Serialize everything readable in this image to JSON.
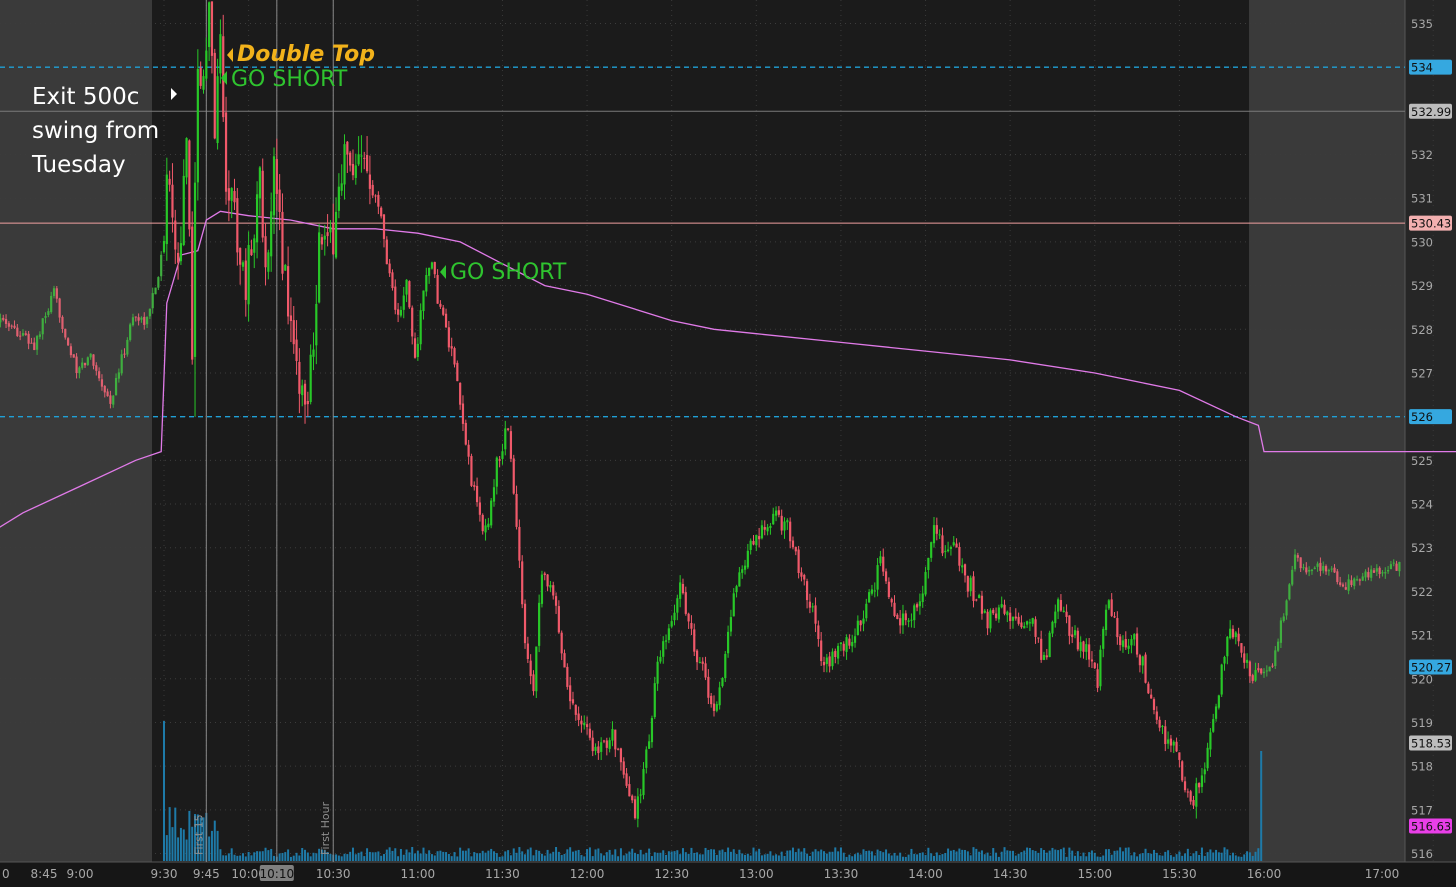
{
  "chart_data": {
    "type": "candlestick",
    "ylim": [
      515.7,
      535.5
    ],
    "y_ticks": [
      "535",
      "534",
      "532.99",
      "532",
      "531",
      "530.43",
      "530",
      "529",
      "528",
      "527",
      "526",
      "525",
      "524",
      "523",
      "522",
      "521",
      "520.27",
      "520",
      "519",
      "518.53",
      "518",
      "517",
      "516.63",
      "516"
    ],
    "x_ticks": [
      "0",
      "8:45",
      "9:00",
      "9:30",
      "9:45",
      "10:00",
      "10:10",
      "10:30",
      "11:00",
      "11:30",
      "12:00",
      "12:30",
      "13:00",
      "13:30",
      "14:00",
      "14:30",
      "15:00",
      "15:30",
      "16:00",
      "17:00"
    ],
    "levels": [
      {
        "value": 534,
        "label": "534",
        "style": "dashed",
        "color": "#1fa0d6"
      },
      {
        "value": 526,
        "label": "526",
        "style": "dashed",
        "color": "#1fa0d6"
      },
      {
        "value": 532.99,
        "label": "532.99",
        "style": "solid",
        "color": "#7a7a7a"
      },
      {
        "value": 530.43,
        "label": "530.43",
        "style": "solid",
        "color": "#f0a0a0"
      }
    ],
    "price_badges": [
      {
        "value": 520.27,
        "label": "520.27",
        "color": "#35a8e0"
      },
      {
        "value": 518.53,
        "label": "518.53",
        "color": "#bdbdbd"
      },
      {
        "value": 516.63,
        "label": "516.63",
        "color": "#e93fe8"
      }
    ],
    "vertical_markers": [
      {
        "time": "9:45",
        "label": "First 15"
      },
      {
        "time": "10:30",
        "label": "First Hour"
      }
    ],
    "price_path": [
      [
        "8:25",
        528.6
      ],
      [
        "8:35",
        528.2
      ],
      [
        "8:45",
        527.6
      ],
      [
        "8:52",
        528.8
      ],
      [
        "9:00",
        527.0
      ],
      [
        "9:05",
        527.4
      ],
      [
        "9:12",
        526.3
      ],
      [
        "9:20",
        528.3
      ],
      [
        "9:25",
        528.2
      ],
      [
        "9:30",
        529.6
      ],
      [
        "9:33",
        531.8
      ],
      [
        "9:36",
        529.5
      ],
      [
        "9:39",
        532.0
      ],
      [
        "9:41",
        527.8
      ],
      [
        "9:43",
        534.4
      ],
      [
        "9:45",
        533.4
      ],
      [
        "9:47",
        535.2
      ],
      [
        "9:49",
        532.8
      ],
      [
        "9:51",
        534.5
      ],
      [
        "9:53",
        531.5
      ],
      [
        "9:55",
        531.0
      ],
      [
        "9:58",
        529.8
      ],
      [
        "10:00",
        529.0
      ],
      [
        "10:03",
        530.5
      ],
      [
        "10:05",
        531.3
      ],
      [
        "10:08",
        529.3
      ],
      [
        "10:10",
        531.5
      ],
      [
        "10:14",
        529.2
      ],
      [
        "10:18",
        527.2
      ],
      [
        "10:21",
        526.2
      ],
      [
        "10:24",
        528.0
      ],
      [
        "10:26",
        530.1
      ],
      [
        "10:30",
        529.8
      ],
      [
        "10:32",
        530.7
      ],
      [
        "10:35",
        532.0
      ],
      [
        "10:38",
        531.2
      ],
      [
        "10:42",
        531.9
      ],
      [
        "10:45",
        531.6
      ],
      [
        "10:48",
        530.5
      ],
      [
        "10:51",
        529.3
      ],
      [
        "10:54",
        528.2
      ],
      [
        "10:57",
        529.0
      ],
      [
        "11:00",
        527.3
      ],
      [
        "11:03",
        528.8
      ],
      [
        "11:05",
        529.6
      ],
      [
        "11:09",
        528.5
      ],
      [
        "11:13",
        527.4
      ],
      [
        "11:17",
        525.8
      ],
      [
        "11:21",
        524.2
      ],
      [
        "11:25",
        523.3
      ],
      [
        "11:29",
        524.9
      ],
      [
        "11:33",
        525.8
      ],
      [
        "11:37",
        522.6
      ],
      [
        "11:39",
        520.9
      ],
      [
        "11:42",
        519.9
      ],
      [
        "11:45",
        522.6
      ],
      [
        "11:50",
        521.6
      ],
      [
        "11:55",
        519.5
      ],
      [
        "12:00",
        519.0
      ],
      [
        "12:05",
        518.2
      ],
      [
        "12:10",
        518.9
      ],
      [
        "12:14",
        517.6
      ],
      [
        "12:18",
        516.9
      ],
      [
        "12:22",
        518.2
      ],
      [
        "12:26",
        520.3
      ],
      [
        "12:30",
        521.0
      ],
      [
        "12:34",
        522.2
      ],
      [
        "12:38",
        521.0
      ],
      [
        "12:42",
        520.2
      ],
      [
        "12:46",
        519.2
      ],
      [
        "12:50",
        520.5
      ],
      [
        "12:54",
        522.3
      ],
      [
        "12:58",
        522.9
      ],
      [
        "13:03",
        523.3
      ],
      [
        "13:07",
        523.7
      ],
      [
        "13:12",
        523.5
      ],
      [
        "13:16",
        522.6
      ],
      [
        "13:20",
        521.8
      ],
      [
        "13:25",
        520.3
      ],
      [
        "13:30",
        520.6
      ],
      [
        "13:35",
        520.9
      ],
      [
        "13:40",
        521.6
      ],
      [
        "13:45",
        522.6
      ],
      [
        "13:50",
        521.6
      ],
      [
        "13:55",
        521.2
      ],
      [
        "14:00",
        522.0
      ],
      [
        "14:04",
        523.6
      ],
      [
        "14:07",
        522.9
      ],
      [
        "14:10",
        523.2
      ],
      [
        "14:14",
        522.4
      ],
      [
        "14:18",
        522.0
      ],
      [
        "14:23",
        521.3
      ],
      [
        "14:28",
        521.7
      ],
      [
        "14:33",
        521.2
      ],
      [
        "14:38",
        521.4
      ],
      [
        "14:43",
        520.4
      ],
      [
        "14:48",
        521.8
      ],
      [
        "14:53",
        521.0
      ],
      [
        "14:58",
        520.7
      ],
      [
        "15:02",
        520.0
      ],
      [
        "15:06",
        521.9
      ],
      [
        "15:10",
        520.6
      ],
      [
        "15:14",
        521.0
      ],
      [
        "15:18",
        520.3
      ],
      [
        "15:22",
        519.2
      ],
      [
        "15:26",
        518.6
      ],
      [
        "15:30",
        518.3
      ],
      [
        "15:33",
        517.4
      ],
      [
        "15:36",
        517.2
      ],
      [
        "15:40",
        518.0
      ],
      [
        "15:44",
        519.3
      ],
      [
        "15:48",
        521.0
      ],
      [
        "15:52",
        520.8
      ],
      [
        "15:56",
        520.2
      ],
      [
        "16:00",
        520.0
      ],
      [
        "16:04",
        520.4
      ],
      [
        "16:08",
        521.5
      ],
      [
        "16:12",
        522.8
      ],
      [
        "16:16",
        522.4
      ],
      [
        "16:22",
        522.6
      ],
      [
        "16:30",
        522.1
      ],
      [
        "16:38",
        522.4
      ],
      [
        "16:45",
        522.5
      ],
      [
        "16:52",
        522.7
      ],
      [
        "17:00",
        522.8
      ],
      [
        "17:06",
        522.9
      ]
    ],
    "vwap_path": [
      [
        "8:25",
        523.2
      ],
      [
        "8:40",
        523.8
      ],
      [
        "9:00",
        524.4
      ],
      [
        "9:20",
        525.0
      ],
      [
        "9:29",
        525.2
      ],
      [
        "9:31",
        528.6
      ],
      [
        "9:36",
        529.7
      ],
      [
        "9:42",
        529.8
      ],
      [
        "9:45",
        530.5
      ],
      [
        "9:50",
        530.7
      ],
      [
        "10:00",
        530.6
      ],
      [
        "10:15",
        530.5
      ],
      [
        "10:30",
        530.3
      ],
      [
        "10:45",
        530.3
      ],
      [
        "11:00",
        530.2
      ],
      [
        "11:15",
        530.0
      ],
      [
        "11:30",
        529.5
      ],
      [
        "11:45",
        529.0
      ],
      [
        "12:00",
        528.8
      ],
      [
        "12:15",
        528.5
      ],
      [
        "12:30",
        528.2
      ],
      [
        "12:45",
        528.0
      ],
      [
        "13:00",
        527.9
      ],
      [
        "13:30",
        527.7
      ],
      [
        "14:00",
        527.5
      ],
      [
        "14:30",
        527.3
      ],
      [
        "15:00",
        527.0
      ],
      [
        "15:30",
        526.6
      ],
      [
        "15:50",
        526.0
      ],
      [
        "15:58",
        525.8
      ],
      [
        "16:00",
        525.2
      ],
      [
        "16:30",
        525.2
      ],
      [
        "17:10",
        525.2
      ]
    ]
  },
  "annotations": {
    "exit_note": [
      "Exit 500c",
      "swing from",
      "Tuesday"
    ],
    "double_top": "Double Top",
    "go_short_1": "GO SHORT",
    "go_short_2": "GO SHORT"
  }
}
